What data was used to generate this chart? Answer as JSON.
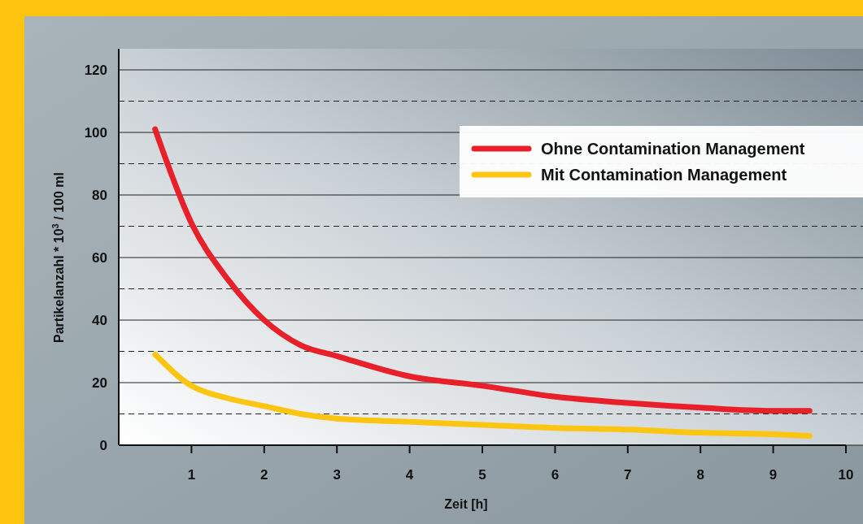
{
  "chart_data": {
    "type": "line",
    "xlabel": "Zeit [h]",
    "ylabel": "Partikelanzahl * 10$^{3}$ / 100 ml",
    "xlim": [
      0,
      10
    ],
    "xticks": [
      1,
      2,
      3,
      4,
      5,
      6,
      7,
      8,
      9,
      10
    ],
    "ylim": [
      0,
      120
    ],
    "yticks": [
      0,
      {
        "value": 10,
        "label": null
      },
      20,
      {
        "value": 30,
        "label": null
      },
      40,
      {
        "value": 50,
        "label": null
      },
      60,
      {
        "value": 70,
        "label": null
      },
      80,
      {
        "value": 90,
        "label": null
      },
      100,
      {
        "value": 110,
        "label": null
      },
      120
    ],
    "grid": "y",
    "legend": "top right",
    "line_style": "solid",
    "marker": "none",
    "series": [
      {
        "name": "Ohne Contamination Management",
        "color": "#e8202a",
        "x": [
          0.5,
          1,
          1.5,
          2,
          2.5,
          3,
          4,
          5,
          6,
          7,
          8,
          9,
          9.5
        ],
        "values": [
          101,
          71,
          53,
          40,
          32,
          28.5,
          22,
          19,
          15.5,
          13.5,
          12,
          11,
          11
        ]
      },
      {
        "name": "Mit Contamination Management",
        "color": "#fcc512",
        "x": [
          0.5,
          1,
          1.5,
          2,
          2.5,
          3,
          4,
          5,
          6,
          7,
          8,
          9,
          9.5
        ],
        "values": [
          29,
          19,
          15,
          12.5,
          10,
          8.5,
          7.5,
          6.5,
          5.5,
          5,
          4,
          3.5,
          3
        ]
      }
    ]
  }
}
